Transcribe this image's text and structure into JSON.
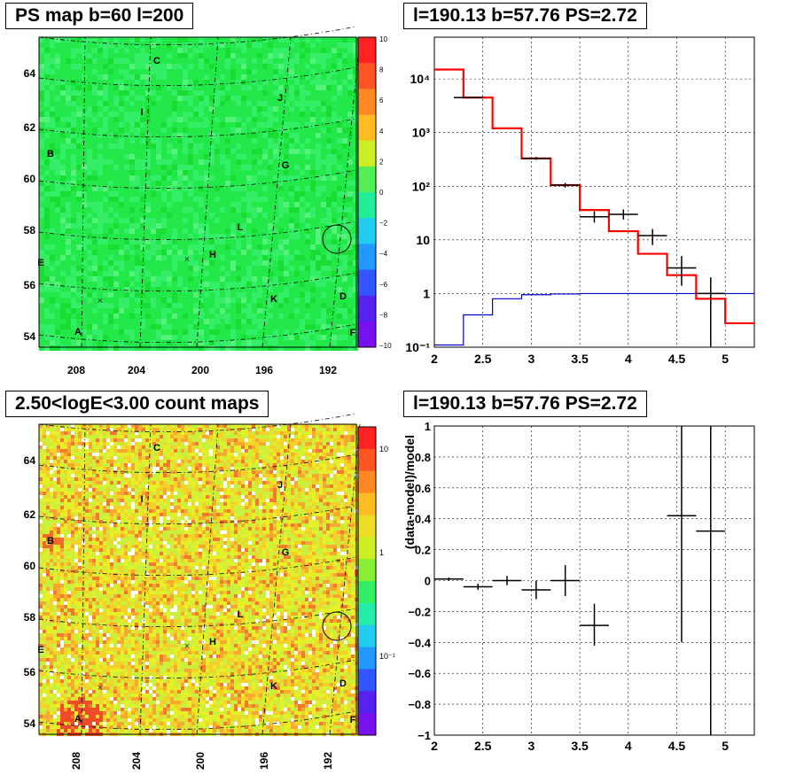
{
  "panels": {
    "top_left": {
      "title": "PS map b=60 l=200"
    },
    "bottom_left": {
      "title": "2.50<logE<3.00 count maps"
    },
    "top_right": {
      "title": "l=190.13 b=57.76 PS=2.72"
    },
    "bottom_right": {
      "title": "l=190.13 b=57.76 PS=2.72"
    }
  },
  "sky_map": {
    "lon_ticks": [
      "208",
      "204",
      "200",
      "196",
      "192"
    ],
    "lat_ticks": [
      "64",
      "62",
      "60",
      "58",
      "56",
      "54"
    ],
    "source_labels": [
      "A",
      "B",
      "C",
      "D",
      "E",
      "F",
      "G",
      "H",
      "I",
      "J",
      "K",
      "L"
    ],
    "ps_colorbar_ticks": [
      "10",
      "8",
      "6",
      "4",
      "2",
      "0",
      "−2",
      "−4",
      "−6",
      "−8",
      "−10"
    ],
    "count_colorbar_ticks": [
      "10",
      "1",
      "10⁻¹"
    ]
  },
  "chart_data": [
    {
      "type": "line",
      "panel": "top_right",
      "title": "l=190.13 b=57.76 PS=2.72",
      "xlabel": "",
      "ylabel": "",
      "xlim": [
        2,
        5.3
      ],
      "ylim": [
        0.1,
        60000
      ],
      "yscale": "log",
      "grid": true,
      "x_ticks": [
        "2",
        "2.5",
        "3",
        "3.5",
        "4",
        "4.5",
        "5"
      ],
      "y_ticks": [
        "10⁴",
        "10³",
        "10²",
        "10",
        "1",
        "10⁻¹"
      ],
      "series": [
        {
          "color": "#ff0000",
          "style": "step",
          "edges": [
            2.0,
            2.3,
            2.6,
            2.9,
            3.2,
            3.5,
            3.8,
            4.1,
            4.4,
            4.7,
            5.0,
            5.3
          ],
          "values": [
            15000,
            4500,
            1200,
            330,
            105,
            36,
            14.5,
            5.5,
            2.2,
            0.8,
            0.28
          ]
        },
        {
          "color": "#0000cc",
          "style": "step",
          "edges": [
            2.0,
            2.3,
            2.6,
            2.9,
            3.2,
            3.5,
            3.8,
            4.1,
            4.4,
            4.7,
            5.0,
            5.3
          ],
          "values": [
            0.11,
            0.4,
            0.8,
            0.95,
            0.98,
            1,
            1,
            1,
            1,
            1,
            1
          ]
        },
        {
          "color": "#000000",
          "style": "points",
          "points": [
            {
              "x": 2.35,
              "y": 4500,
              "xerr": 0.15,
              "ylo": 4400,
              "yhi": 4600
            },
            {
              "x": 3.05,
              "y": 330,
              "xerr": 0.15,
              "ylo": 310,
              "yhi": 350
            },
            {
              "x": 3.35,
              "y": 105,
              "xerr": 0.15,
              "ylo": 95,
              "yhi": 115
            },
            {
              "x": 3.65,
              "y": 27,
              "xerr": 0.15,
              "ylo": 21,
              "yhi": 34
            },
            {
              "x": 3.95,
              "y": 30,
              "xerr": 0.15,
              "ylo": 24,
              "yhi": 37
            },
            {
              "x": 4.25,
              "y": 12,
              "xerr": 0.15,
              "ylo": 8,
              "yhi": 16
            },
            {
              "x": 4.55,
              "y": 3,
              "xerr": 0.15,
              "ylo": 1.4,
              "yhi": 5
            },
            {
              "x": 4.85,
              "y": 1,
              "xerr": 0.15,
              "ylo": 0.1,
              "yhi": 2
            }
          ]
        }
      ]
    },
    {
      "type": "scatter",
      "panel": "bottom_right",
      "title": "l=190.13 b=57.76 PS=2.72",
      "xlabel": "",
      "ylabel": "(data-model)/model",
      "xlim": [
        2,
        5.3
      ],
      "ylim": [
        -1,
        1
      ],
      "grid": true,
      "x_ticks": [
        "2",
        "2.5",
        "3",
        "3.5",
        "4",
        "4.5",
        "5"
      ],
      "y_ticks": [
        "1",
        "0.8",
        "0.6",
        "0.4",
        "0.2",
        "0",
        "−0.2",
        "−0.4",
        "−0.6",
        "−0.8",
        "−1"
      ],
      "points": [
        {
          "x": 2.15,
          "y": 0.01,
          "xerr": 0.15,
          "ylo": 0.0,
          "yhi": 0.02
        },
        {
          "x": 2.45,
          "y": -0.04,
          "xerr": 0.15,
          "ylo": -0.06,
          "yhi": -0.02
        },
        {
          "x": 2.75,
          "y": 0.0,
          "xerr": 0.15,
          "ylo": -0.03,
          "yhi": 0.03
        },
        {
          "x": 3.05,
          "y": -0.06,
          "xerr": 0.15,
          "ylo": -0.12,
          "yhi": 0.0
        },
        {
          "x": 3.35,
          "y": 0.0,
          "xerr": 0.15,
          "ylo": -0.1,
          "yhi": 0.1
        },
        {
          "x": 3.65,
          "y": -0.29,
          "xerr": 0.15,
          "ylo": -0.42,
          "yhi": -0.15
        },
        {
          "x": 4.55,
          "y": 0.42,
          "xerr": 0.15,
          "ylo": -0.4,
          "yhi": 1.0
        },
        {
          "x": 4.85,
          "y": 0.32,
          "xerr": 0.15,
          "ylo": -1.0,
          "yhi": 1.0
        }
      ]
    }
  ]
}
